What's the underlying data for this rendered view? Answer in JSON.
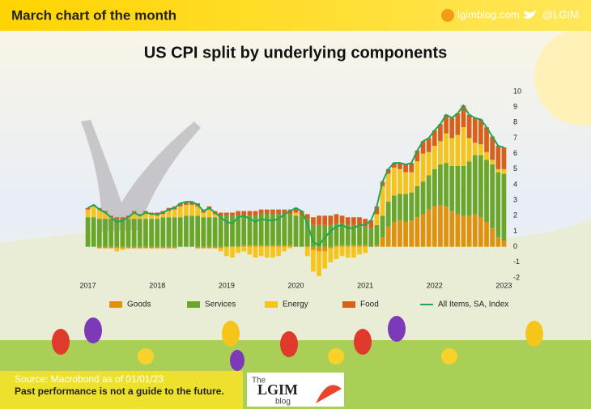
{
  "header": {
    "title": "March chart of the month",
    "website": "lgimblog.com",
    "twitter": "@LGIM"
  },
  "footer": {
    "source": "Source: Macrobond as of 01/01/23",
    "disclaimer": "Past performance is not a guide to the future."
  },
  "logo": {
    "the": "The",
    "name": "LGIM",
    "blog": "blog"
  },
  "chart_data": {
    "type": "bar",
    "stacked": true,
    "title": "US CPI split by underlying components",
    "categories": [
      "2017",
      null,
      null,
      null,
      null,
      null,
      null,
      null,
      null,
      null,
      null,
      null,
      "2018",
      null,
      null,
      null,
      null,
      null,
      null,
      null,
      null,
      null,
      null,
      null,
      "2019",
      null,
      null,
      null,
      null,
      null,
      null,
      null,
      null,
      null,
      null,
      null,
      "2020",
      null,
      null,
      null,
      null,
      null,
      null,
      null,
      null,
      null,
      null,
      null,
      "2021",
      null,
      null,
      null,
      null,
      null,
      null,
      null,
      null,
      null,
      null,
      null,
      "2022",
      null,
      null,
      null,
      null,
      null,
      null,
      null,
      null,
      null,
      null,
      null,
      "2023"
    ],
    "ylim": [
      -2,
      10
    ],
    "yticks": [
      -2,
      -1,
      0,
      1,
      2,
      3,
      4,
      5,
      6,
      7,
      8,
      9,
      10
    ],
    "yaxis_position": "right",
    "series": [
      {
        "name": "Goods",
        "type": "bar",
        "color": "#e0920c",
        "values": [
          0.0,
          0.0,
          -0.1,
          -0.1,
          -0.1,
          -0.1,
          -0.1,
          -0.1,
          -0.1,
          -0.1,
          -0.1,
          -0.1,
          -0.1,
          -0.1,
          -0.1,
          -0.1,
          0.0,
          0.0,
          0.0,
          -0.1,
          -0.1,
          -0.1,
          -0.1,
          -0.1,
          0.0,
          0.0,
          0.0,
          0.1,
          0.1,
          0.1,
          0.1,
          0.1,
          0.1,
          0.1,
          0.1,
          0.1,
          0.0,
          0.0,
          0.0,
          -0.2,
          -0.3,
          -0.3,
          -0.1,
          0.1,
          0.1,
          0.1,
          0.1,
          0.1,
          0.1,
          0.0,
          0.1,
          0.6,
          1.3,
          1.6,
          1.7,
          1.6,
          1.7,
          1.9,
          2.1,
          2.4,
          2.6,
          2.7,
          2.6,
          2.3,
          2.1,
          2.0,
          2.0,
          2.1,
          1.9,
          1.6,
          1.2,
          0.6,
          0.4
        ]
      },
      {
        "name": "Services",
        "type": "bar",
        "color": "#6aa62a",
        "values": [
          1.9,
          1.9,
          1.8,
          1.8,
          1.8,
          1.8,
          1.8,
          1.8,
          1.8,
          1.8,
          1.8,
          1.8,
          1.8,
          1.9,
          1.9,
          1.9,
          1.9,
          2.0,
          2.0,
          2.0,
          1.9,
          1.9,
          1.9,
          2.0,
          2.0,
          2.0,
          2.0,
          1.9,
          1.9,
          1.9,
          2.0,
          2.0,
          2.0,
          2.0,
          2.0,
          2.0,
          2.0,
          2.0,
          1.8,
          1.4,
          1.4,
          1.4,
          1.4,
          1.4,
          1.4,
          1.3,
          1.3,
          1.3,
          1.2,
          1.2,
          1.3,
          1.4,
          1.6,
          1.7,
          1.7,
          1.8,
          1.8,
          2.0,
          2.1,
          2.2,
          2.4,
          2.6,
          2.8,
          2.9,
          3.1,
          3.2,
          3.5,
          3.8,
          4.0,
          4.0,
          4.1,
          4.2,
          4.3
        ]
      },
      {
        "name": "Energy",
        "type": "bar",
        "color": "#f6c51d",
        "values": [
          0.5,
          0.7,
          0.6,
          0.4,
          0.1,
          -0.2,
          -0.1,
          0.1,
          0.4,
          0.2,
          0.4,
          0.3,
          0.2,
          0.2,
          0.4,
          0.5,
          0.7,
          0.7,
          0.7,
          0.6,
          0.3,
          0.5,
          0.2,
          -0.2,
          -0.6,
          -0.7,
          -0.4,
          -0.3,
          -0.5,
          -0.7,
          -0.6,
          -0.7,
          -0.7,
          -0.6,
          -0.3,
          -0.1,
          0.2,
          0.0,
          -0.6,
          -1.4,
          -1.6,
          -1.1,
          -0.9,
          -0.8,
          -0.6,
          -0.7,
          -0.7,
          -0.5,
          -0.4,
          0.0,
          0.7,
          1.9,
          1.8,
          1.8,
          1.6,
          1.4,
          1.3,
          1.6,
          1.8,
          1.5,
          1.5,
          1.5,
          1.9,
          1.8,
          2.0,
          2.5,
          1.5,
          0.8,
          0.7,
          0.5,
          0.3,
          0.2,
          0.3
        ]
      },
      {
        "name": "Food",
        "type": "bar",
        "color": "#d8601b",
        "values": [
          0.1,
          0.1,
          0.1,
          0.1,
          0.1,
          0.1,
          0.1,
          0.1,
          0.1,
          0.1,
          0.1,
          0.1,
          0.2,
          0.2,
          0.2,
          0.2,
          0.2,
          0.2,
          0.2,
          0.2,
          0.2,
          0.2,
          0.2,
          0.2,
          0.2,
          0.2,
          0.3,
          0.3,
          0.3,
          0.3,
          0.3,
          0.3,
          0.3,
          0.3,
          0.3,
          0.3,
          0.3,
          0.3,
          0.3,
          0.5,
          0.6,
          0.6,
          0.6,
          0.6,
          0.5,
          0.5,
          0.5,
          0.5,
          0.5,
          0.5,
          0.5,
          0.3,
          0.3,
          0.3,
          0.4,
          0.5,
          0.6,
          0.7,
          0.8,
          0.9,
          1.0,
          1.1,
          1.2,
          1.3,
          1.4,
          1.4,
          1.5,
          1.6,
          1.6,
          1.6,
          1.5,
          1.5,
          1.4
        ]
      },
      {
        "name": "All Items, SA, Index",
        "type": "line",
        "color": "#1ea65a",
        "values": [
          2.5,
          2.7,
          2.4,
          2.2,
          1.9,
          1.6,
          1.7,
          1.9,
          2.2,
          2.0,
          2.2,
          2.1,
          2.1,
          2.2,
          2.4,
          2.5,
          2.8,
          2.9,
          2.9,
          2.7,
          2.3,
          2.5,
          2.2,
          1.9,
          1.6,
          1.5,
          1.9,
          2.0,
          1.8,
          1.6,
          1.8,
          1.7,
          1.7,
          1.8,
          2.1,
          2.3,
          2.5,
          2.3,
          1.5,
          0.3,
          0.1,
          0.6,
          1.0,
          1.3,
          1.4,
          1.2,
          1.2,
          1.4,
          1.4,
          1.7,
          2.6,
          4.2,
          5.0,
          5.4,
          5.4,
          5.3,
          5.4,
          6.2,
          6.8,
          7.0,
          7.5,
          7.9,
          8.5,
          8.3,
          8.6,
          9.1,
          8.5,
          8.3,
          8.2,
          7.7,
          7.1,
          6.5,
          6.4
        ]
      }
    ]
  }
}
